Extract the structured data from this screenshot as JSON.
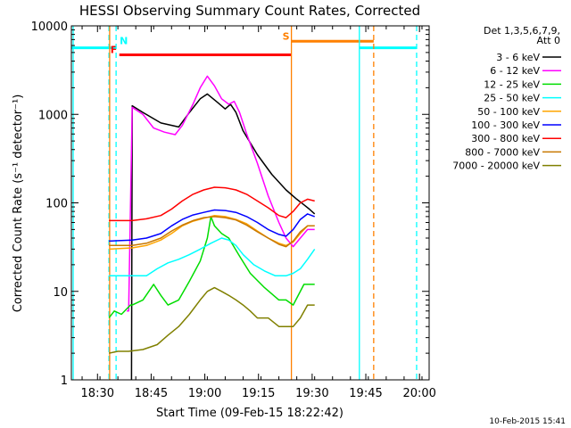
{
  "chart_data": {
    "type": "line",
    "title": "HESSI Observing Summary Count Rates, Corrected",
    "xlabel": "Start Time (09-Feb-15 18:22:42)",
    "ylabel": "Corrected Count Rate (s⁻¹ detector⁻¹)",
    "x_unit": "minutes after 18:22:42",
    "xlim": [
      0,
      100
    ],
    "ylim": [
      1,
      10000
    ],
    "y_scale": "log",
    "x_ticks": [
      "18:30",
      "18:45",
      "19:00",
      "19:15",
      "19:30",
      "19:45",
      "20:00"
    ],
    "y_ticks": [
      "1",
      "10",
      "100",
      "1000",
      "10000"
    ],
    "legend_title": [
      "Det 1,3,5,6,7,9,",
      "Att 0"
    ],
    "legend_position": "top-right, outside plot",
    "footer": "10-Feb-2015 15:41",
    "series": [
      {
        "name": "3 - 6 keV",
        "color": "#000000",
        "x": [
          16.8,
          17,
          20,
          25,
          30,
          33,
          36,
          38,
          41,
          43,
          44.5,
          46,
          48,
          52,
          56,
          60,
          63,
          65,
          66.5,
          68
        ],
        "y": [
          1,
          1250,
          1050,
          800,
          720,
          1050,
          1500,
          1700,
          1350,
          1150,
          1300,
          1050,
          650,
          350,
          210,
          140,
          110,
          95,
          85,
          75
        ]
      },
      {
        "name": "6 - 12 keV",
        "color": "#ff00ff",
        "x": [
          15.5,
          16,
          17,
          20,
          23,
          26,
          29,
          31,
          34,
          36,
          38,
          40,
          42,
          44,
          45.5,
          47,
          49,
          52,
          55,
          58,
          60,
          62,
          64,
          66,
          68
        ],
        "y": [
          6,
          6,
          1200,
          1000,
          700,
          630,
          590,
          750,
          1300,
          2000,
          2700,
          2100,
          1500,
          1300,
          1400,
          1050,
          600,
          280,
          120,
          60,
          40,
          32,
          40,
          50,
          50
        ]
      },
      {
        "name": "12 - 25 keV",
        "color": "#00dd00",
        "x": [
          10.5,
          12,
          14,
          16.5,
          17,
          20,
          23,
          25,
          27,
          30,
          33,
          36,
          38,
          39,
          40,
          42,
          44,
          47,
          50,
          54,
          58,
          60,
          62,
          65,
          68
        ],
        "y": [
          5,
          6,
          5.5,
          7,
          7,
          8,
          12,
          9,
          7,
          8,
          13,
          22,
          40,
          70,
          55,
          45,
          40,
          25,
          16,
          11,
          8,
          8,
          7,
          12,
          12
        ]
      },
      {
        "name": "25 - 50 keV",
        "color": "#00ffff",
        "x": [
          10.5,
          17,
          21,
          24,
          27,
          30,
          33,
          36,
          39,
          42,
          44,
          46,
          48,
          51,
          54,
          57,
          60,
          62,
          64,
          66,
          68
        ],
        "y": [
          15,
          15,
          15,
          18,
          21,
          23,
          26,
          30,
          35,
          40,
          38,
          33,
          26,
          20,
          17,
          15,
          15,
          16,
          18,
          23,
          30
        ]
      },
      {
        "name": "50 - 100 keV",
        "color": "#ffa500",
        "x": [
          10.5,
          17,
          21,
          25,
          28,
          31,
          34,
          37,
          40,
          43,
          46,
          49,
          52,
          55,
          58,
          60,
          62,
          64,
          66,
          68
        ],
        "y": [
          30,
          31,
          33,
          38,
          45,
          55,
          62,
          67,
          72,
          70,
          65,
          58,
          48,
          40,
          35,
          33,
          36,
          45,
          55,
          55
        ]
      },
      {
        "name": "100 - 300 keV",
        "color": "#0000ff",
        "x": [
          10.5,
          17,
          21,
          25,
          28,
          31,
          34,
          37,
          40,
          43,
          46,
          49,
          52,
          55,
          58,
          60,
          62,
          64,
          66,
          68
        ],
        "y": [
          37,
          38,
          40,
          45,
          55,
          65,
          73,
          78,
          83,
          82,
          78,
          70,
          60,
          50,
          44,
          42,
          50,
          65,
          75,
          70
        ]
      },
      {
        "name": "300 - 800 keV",
        "color": "#ff0000",
        "x": [
          10.5,
          17,
          21,
          25,
          28,
          31,
          34,
          37,
          40,
          43,
          46,
          49,
          52,
          55,
          58,
          60,
          62,
          64,
          66,
          68
        ],
        "y": [
          63,
          63,
          66,
          72,
          85,
          105,
          125,
          140,
          150,
          148,
          140,
          125,
          105,
          88,
          72,
          68,
          80,
          100,
          110,
          105
        ]
      },
      {
        "name": "800 - 7000 keV",
        "color": "#c87800",
        "x": [
          10.5,
          17,
          21,
          25,
          28,
          31,
          34,
          37,
          40,
          43,
          46,
          49,
          52,
          55,
          58,
          60,
          62,
          64,
          66,
          68
        ],
        "y": [
          33,
          33,
          35,
          40,
          48,
          56,
          63,
          68,
          70,
          68,
          64,
          56,
          47,
          40,
          34,
          32,
          37,
          47,
          55,
          55
        ]
      },
      {
        "name": "7000 - 20000 keV",
        "color": "#808000",
        "x": [
          10.5,
          13,
          16,
          20,
          24,
          27,
          30,
          33,
          36,
          38,
          40,
          42,
          44,
          46,
          48,
          50,
          52,
          55,
          58,
          60,
          62,
          64,
          66,
          68
        ],
        "y": [
          2,
          2.1,
          2.1,
          2.2,
          2.5,
          3.2,
          4,
          5.5,
          8,
          10,
          11,
          10,
          9,
          8,
          7,
          6,
          5,
          5,
          4,
          4,
          4,
          5,
          7,
          7
        ]
      }
    ],
    "flags": [
      {
        "label": "N",
        "color": "#00ffff",
        "segments": [
          [
            0,
            12.5
          ],
          [
            80.5,
            96.5
          ]
        ],
        "y": 5650
      },
      {
        "label": "F",
        "color": "#ff0000",
        "segments": [
          [
            13.4,
            61.5
          ]
        ],
        "y": 4700
      },
      {
        "label": "S",
        "color": "#ff8000",
        "segments": [
          [
            61.5,
            84.5
          ]
        ],
        "y": 6700
      }
    ],
    "vlines": [
      {
        "x": 0.5,
        "color": "#00ffff",
        "style": "solid"
      },
      {
        "x": 10.5,
        "color": "#00ffff",
        "style": "dashed"
      },
      {
        "x": 12.5,
        "color": "#00ffff",
        "style": "dashed"
      },
      {
        "x": 10.7,
        "color": "#ff8000",
        "style": "solid"
      },
      {
        "x": 61.5,
        "color": "#ff8000",
        "style": "solid"
      },
      {
        "x": 80.5,
        "color": "#00ffff",
        "style": "solid"
      },
      {
        "x": 84.5,
        "color": "#ff8000",
        "style": "dashed"
      },
      {
        "x": 96.5,
        "color": "#00ffff",
        "style": "dashed"
      }
    ]
  }
}
